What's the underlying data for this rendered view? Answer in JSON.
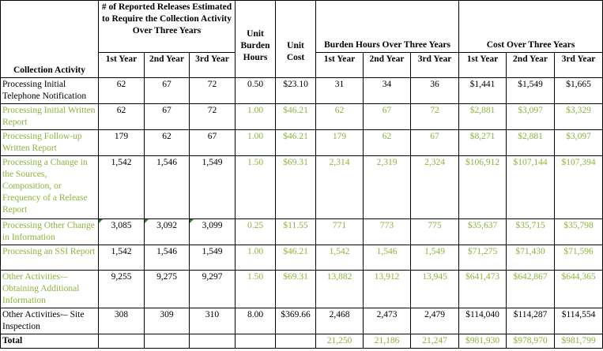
{
  "headers": {
    "activity": "Collection Activity",
    "releases_group": "# of Reported Releases Estimated to Require the Collection Activity Over Three Years",
    "unit_burden": "Unit Burden Hours",
    "unit_cost": "Unit Cost",
    "burden_group": "Burden Hours Over Three Years",
    "cost_group": "Cost Over Three Years",
    "y1": "1st Year",
    "y2": "2nd Year",
    "y3": "3rd Year"
  },
  "rows": [
    {
      "activity": "Processing Initial Telephone Notification",
      "r": [
        "62",
        "67",
        "72"
      ],
      "hours": "0.50",
      "cost": "$23.10",
      "b": [
        "31",
        "34",
        "36"
      ],
      "c": [
        "$1,441",
        "$1,549",
        "$1,665"
      ],
      "green": false
    },
    {
      "activity": "Processing Initial Written Report",
      "r": [
        "62",
        "67",
        "72"
      ],
      "hours": "1.00",
      "cost": "$46.21",
      "b": [
        "62",
        "67",
        "72"
      ],
      "c": [
        "$2,881",
        "$3,097",
        "$3,329"
      ],
      "green": true
    },
    {
      "activity": "Processing Follow-up Written Report",
      "r": [
        "179",
        "62",
        "67"
      ],
      "hours": "1.00",
      "cost": "$46.21",
      "b": [
        "179",
        "62",
        "67"
      ],
      "c": [
        "$8,271",
        "$2,881",
        "$3,097"
      ],
      "green": true
    },
    {
      "activity": "Processing a Change in the Sources, Composition, or Frequency of a Release Report",
      "r": [
        "1,542",
        "1,546",
        "1,549"
      ],
      "hours": "1.50",
      "cost": "$69.31",
      "b": [
        "2,314",
        "2,319",
        "2,324"
      ],
      "c": [
        "$106,912",
        "$107,144",
        "$107,394"
      ],
      "green": true
    },
    {
      "activity": "Processing Other Change in Information",
      "r": [
        "3,085",
        "3,092",
        "3,099"
      ],
      "hours": "0.25",
      "cost": "$11.55",
      "b": [
        "771",
        "773",
        "775"
      ],
      "c": [
        "$35,637",
        "$35,715",
        "$35,798"
      ],
      "green": true
    },
    {
      "activity": "Processing an SSI Report",
      "r": [
        "1,542",
        "1,546",
        "1,549"
      ],
      "hours": "1.00",
      "cost": "$46.21",
      "b": [
        "1,542",
        "1,546",
        "1,549"
      ],
      "c": [
        "$71,275",
        "$71,430",
        "$71,596"
      ],
      "green": true
    },
    {
      "activity": "Other Activities-– Obtaining Additional Information",
      "r": [
        "9,255",
        "9,275",
        "9,297"
      ],
      "hours": "1.50",
      "cost": "$69.31",
      "b": [
        "13,882",
        "13,912",
        "13,945"
      ],
      "c": [
        "$641,473",
        "$642,867",
        "$644,365"
      ],
      "green": true
    },
    {
      "activity": "Other Activities-– Site Inspection",
      "r": [
        "308",
        "309",
        "310"
      ],
      "hours": "8.00",
      "cost": "$369.66",
      "b": [
        "2,468",
        "2,473",
        "2,479"
      ],
      "c": [
        "$114,040",
        "$114,287",
        "$114,554"
      ],
      "green": false
    }
  ],
  "total": {
    "label": "Total",
    "b": [
      "21,250",
      "21,186",
      "21,247"
    ],
    "c": [
      "$981,930",
      "$978,970",
      "$981,799"
    ]
  }
}
